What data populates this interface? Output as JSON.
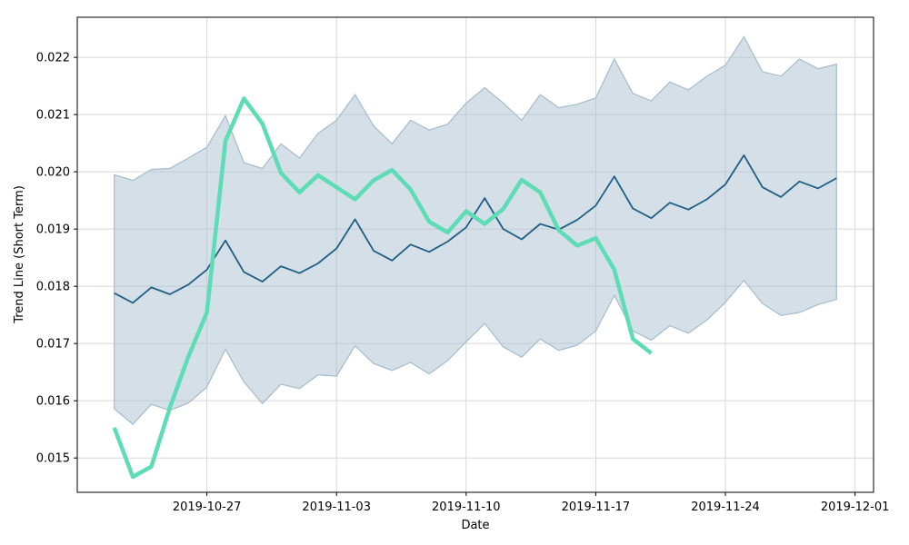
{
  "chart_data": {
    "type": "line",
    "xlabel": "Date",
    "ylabel": "Trend Line (Short Term)",
    "xlim": [
      "2019-10-20",
      "2019-12-02"
    ],
    "ylim": [
      0.0144,
      0.0227
    ],
    "grid": true,
    "x_ticks": [
      "2019-10-27",
      "2019-11-03",
      "2019-11-10",
      "2019-11-17",
      "2019-11-24",
      "2019-12-01"
    ],
    "y_ticks": [
      "0.015",
      "0.016",
      "0.017",
      "0.018",
      "0.019",
      "0.020",
      "0.021",
      "0.022"
    ],
    "colors": {
      "band": "#a9c0cf",
      "band_edge": "#a5bccc",
      "trend": "#1f5f85",
      "actual": "#5ddcb5"
    },
    "x": [
      "2019-10-22",
      "2019-10-23",
      "2019-10-24",
      "2019-10-25",
      "2019-10-26",
      "2019-10-27",
      "2019-10-28",
      "2019-10-29",
      "2019-10-30",
      "2019-10-31",
      "2019-11-01",
      "2019-11-02",
      "2019-11-03",
      "2019-11-04",
      "2019-11-05",
      "2019-11-06",
      "2019-11-07",
      "2019-11-08",
      "2019-11-09",
      "2019-11-10",
      "2019-11-11",
      "2019-11-12",
      "2019-11-13",
      "2019-11-14",
      "2019-11-15",
      "2019-11-16",
      "2019-11-17",
      "2019-11-18",
      "2019-11-19",
      "2019-11-20",
      "2019-11-21",
      "2019-11-22",
      "2019-11-23",
      "2019-11-24",
      "2019-11-25",
      "2019-11-26",
      "2019-11-27",
      "2019-11-28",
      "2019-11-29",
      "2019-11-30"
    ],
    "series": [
      {
        "role": "trend",
        "values": [
          0.01788,
          0.01771,
          0.01798,
          0.01786,
          0.01803,
          0.01829,
          0.0188,
          0.01825,
          0.01808,
          0.01835,
          0.01823,
          0.0184,
          0.01866,
          0.01917,
          0.01862,
          0.01845,
          0.01873,
          0.0186,
          0.01878,
          0.01903,
          0.01954,
          0.019,
          0.01882,
          0.01909,
          0.01899,
          0.01916,
          0.01941,
          0.01992,
          0.01936,
          0.01919,
          0.01946,
          0.01934,
          0.01952,
          0.01978,
          0.02029,
          0.01973,
          0.01956,
          0.01983,
          0.01971,
          0.01989
        ]
      },
      {
        "role": "upper",
        "values": [
          0.01995,
          0.01985,
          0.02004,
          0.02006,
          0.02024,
          0.02043,
          0.02098,
          0.02016,
          0.02006,
          0.02049,
          0.02024,
          0.02067,
          0.0209,
          0.02135,
          0.0208,
          0.02049,
          0.0209,
          0.02073,
          0.02083,
          0.0212,
          0.02147,
          0.0212,
          0.0209,
          0.02135,
          0.02112,
          0.02118,
          0.02129,
          0.02197,
          0.02137,
          0.02124,
          0.02157,
          0.02143,
          0.02167,
          0.02186,
          0.02236,
          0.02175,
          0.02167,
          0.02197,
          0.0218,
          0.02188
        ]
      },
      {
        "role": "lower",
        "values": [
          0.01586,
          0.01559,
          0.01594,
          0.01583,
          0.01596,
          0.01624,
          0.0169,
          0.01633,
          0.01595,
          0.01629,
          0.01621,
          0.01645,
          0.01643,
          0.01696,
          0.01665,
          0.01653,
          0.01667,
          0.01647,
          0.0167,
          0.01703,
          0.01735,
          0.01694,
          0.01676,
          0.01708,
          0.01688,
          0.01697,
          0.01722,
          0.01784,
          0.01722,
          0.01706,
          0.01731,
          0.01718,
          0.01741,
          0.01772,
          0.0181,
          0.0177,
          0.01749,
          0.01754,
          0.01768,
          0.01777
        ]
      },
      {
        "role": "actual",
        "x": [
          "2019-10-22",
          "2019-10-23",
          "2019-10-24",
          "2019-10-25",
          "2019-10-26",
          "2019-10-27",
          "2019-10-28",
          "2019-10-29",
          "2019-10-30",
          "2019-10-31",
          "2019-11-01",
          "2019-11-02",
          "2019-11-03",
          "2019-11-04",
          "2019-11-05",
          "2019-11-06",
          "2019-11-07",
          "2019-11-08",
          "2019-11-09",
          "2019-11-10",
          "2019-11-11",
          "2019-11-12",
          "2019-11-13",
          "2019-11-14",
          "2019-11-15",
          "2019-11-16",
          "2019-11-17",
          "2019-11-18",
          "2019-11-19",
          "2019-11-20"
        ],
        "values": [
          0.01553,
          0.01467,
          0.01485,
          0.01588,
          0.01677,
          0.01754,
          0.02054,
          0.02128,
          0.02084,
          0.01998,
          0.01964,
          0.01994,
          0.01973,
          0.01952,
          0.01985,
          0.02003,
          0.01969,
          0.01913,
          0.01894,
          0.01931,
          0.01909,
          0.01935,
          0.01986,
          0.01964,
          0.01898,
          0.01871,
          0.01884,
          0.01829,
          0.01708,
          0.01683
        ]
      }
    ]
  }
}
